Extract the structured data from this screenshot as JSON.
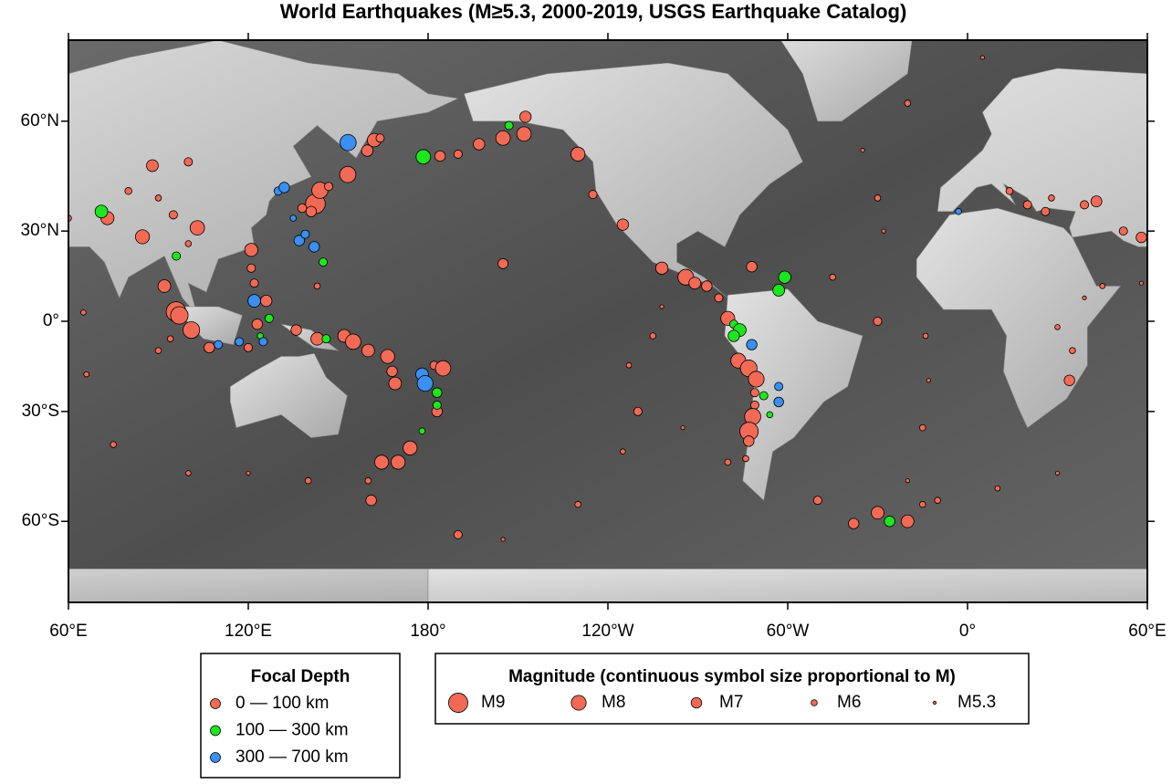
{
  "map": {
    "title": "World Earthquakes (M≥5.3, 2000-2019, USGS Earthquake Catalog)",
    "projection": "miller",
    "xlim": [
      60,
      420
    ],
    "ylim": [
      -76,
      76
    ],
    "xticks": [
      {
        "value": 60,
        "label": "60°E"
      },
      {
        "value": 120,
        "label": "120°E"
      },
      {
        "value": 180,
        "label": "180°"
      },
      {
        "value": 240,
        "label": "120°W"
      },
      {
        "value": 300,
        "label": "60°W"
      },
      {
        "value": 360,
        "label": "0°"
      },
      {
        "value": 420,
        "label": "60°E"
      }
    ],
    "yticks": [
      {
        "value": -60,
        "label": "60°S"
      },
      {
        "value": -30,
        "label": "30°S"
      },
      {
        "value": 0,
        "label": "0°"
      },
      {
        "value": 30,
        "label": "30°N"
      },
      {
        "value": 60,
        "label": "60°N"
      }
    ],
    "depth_legend": {
      "title": "Focal Depth",
      "classes": [
        {
          "label": "0 — 100 km",
          "min": 0,
          "max": 100,
          "color": "#f26a55"
        },
        {
          "label": "100 — 300 km",
          "min": 100,
          "max": 300,
          "color": "#1ee61e"
        },
        {
          "label": "300 — 700 km",
          "min": 300,
          "max": 700,
          "color": "#3a8ff0"
        }
      ]
    },
    "magnitude_legend": {
      "title": "Magnitude (continuous symbol size proportional to M)",
      "entries": [
        {
          "value": 9,
          "label": "M9"
        },
        {
          "value": 8,
          "label": "M8"
        },
        {
          "value": 7,
          "label": "M7"
        },
        {
          "value": 6,
          "label": "M6"
        },
        {
          "value": 5.3,
          "label": "M5.3"
        }
      ]
    },
    "quakes": [
      {
        "lon": 142.4,
        "lat": 38.3,
        "mag": 9.1,
        "depth": 29
      },
      {
        "lon": 143.9,
        "lat": 42.2,
        "mag": 8.3,
        "depth": 27
      },
      {
        "lon": 153.2,
        "lat": 46.6,
        "mag": 8.3,
        "depth": 10
      },
      {
        "lon": 141.0,
        "lat": 36.0,
        "mag": 7.0,
        "depth": 40
      },
      {
        "lon": 146.8,
        "lat": 43.3,
        "mag": 6.5,
        "depth": 60
      },
      {
        "lon": 138.0,
        "lat": 37.0,
        "mag": 6.6,
        "depth": 10
      },
      {
        "lon": 159.7,
        "lat": 52.9,
        "mag": 7.2,
        "depth": 60
      },
      {
        "lon": 162.0,
        "lat": 55.5,
        "mag": 7.7,
        "depth": 10
      },
      {
        "lon": 164.0,
        "lat": 56.0,
        "mag": 6.5,
        "depth": 15
      },
      {
        "lon": -176.0,
        "lat": 51.5,
        "mag": 7.0,
        "depth": 30
      },
      {
        "lon": -170.0,
        "lat": 52.0,
        "mag": 6.5,
        "depth": 20
      },
      {
        "lon": -163.0,
        "lat": 54.5,
        "mag": 7.2,
        "depth": 20
      },
      {
        "lon": -155.0,
        "lat": 56.0,
        "mag": 7.9,
        "depth": 20
      },
      {
        "lon": -148.0,
        "lat": 57.0,
        "mag": 7.9,
        "depth": 25
      },
      {
        "lon": -147.5,
        "lat": 61.0,
        "mag": 7.2,
        "depth": 30
      },
      {
        "lon": -130.0,
        "lat": 52.0,
        "mag": 7.8,
        "depth": 15
      },
      {
        "lon": -125.0,
        "lat": 41.0,
        "mag": 6.5,
        "depth": 20
      },
      {
        "lon": -115.0,
        "lat": 32.0,
        "mag": 7.2,
        "depth": 10
      },
      {
        "lon": -155.0,
        "lat": 19.5,
        "mag": 6.9,
        "depth": 10
      },
      {
        "lon": -102.0,
        "lat": 18.0,
        "mag": 7.4,
        "depth": 20
      },
      {
        "lon": -94.0,
        "lat": 15.0,
        "mag": 8.2,
        "depth": 50
      },
      {
        "lon": -91.0,
        "lat": 13.0,
        "mag": 7.3,
        "depth": 30
      },
      {
        "lon": -87.0,
        "lat": 12.0,
        "mag": 7.0,
        "depth": 60
      },
      {
        "lon": -83.0,
        "lat": 8.0,
        "mag": 6.5,
        "depth": 20
      },
      {
        "lon": -80.0,
        "lat": 1.0,
        "mag": 7.8,
        "depth": 20
      },
      {
        "lon": -72.0,
        "lat": 18.5,
        "mag": 7.0,
        "depth": 13
      },
      {
        "lon": -76.5,
        "lat": -13.4,
        "mag": 8.0,
        "depth": 39
      },
      {
        "lon": -73.0,
        "lat": -16.0,
        "mag": 8.4,
        "depth": 30
      },
      {
        "lon": -70.5,
        "lat": -19.6,
        "mag": 8.2,
        "depth": 25
      },
      {
        "lon": -71.0,
        "lat": -24.0,
        "mag": 6.5,
        "depth": 60
      },
      {
        "lon": -71.0,
        "lat": -28.0,
        "mag": 6.5,
        "depth": 40
      },
      {
        "lon": -71.7,
        "lat": -31.6,
        "mag": 8.3,
        "depth": 22
      },
      {
        "lon": -72.9,
        "lat": -36.1,
        "mag": 8.8,
        "depth": 23
      },
      {
        "lon": -73.0,
        "lat": -39.0,
        "mag": 7.0,
        "depth": 20
      },
      {
        "lon": -74.0,
        "lat": -44.0,
        "mag": 6.0,
        "depth": 10
      },
      {
        "lon": -30.0,
        "lat": -58.0,
        "mag": 7.5,
        "depth": 30
      },
      {
        "lon": -50.0,
        "lat": -55.0,
        "mag": 6.5,
        "depth": 10
      },
      {
        "lon": -15.0,
        "lat": -56.0,
        "mag": 6.0,
        "depth": 10
      },
      {
        "lon": -20.0,
        "lat": -60.0,
        "mag": 7.5,
        "depth": 15
      },
      {
        "lon": -38.0,
        "lat": -60.5,
        "mag": 7.0,
        "depth": 10
      },
      {
        "lon": -30.0,
        "lat": 40.0,
        "mag": 6.0,
        "depth": 10
      },
      {
        "lon": -28.0,
        "lat": 30.0,
        "mag": 5.5,
        "depth": 10
      },
      {
        "lon": -45.0,
        "lat": 15.0,
        "mag": 6.0,
        "depth": 10
      },
      {
        "lon": -30.0,
        "lat": 0.0,
        "mag": 6.5,
        "depth": 10
      },
      {
        "lon": -14.0,
        "lat": -5.0,
        "mag": 5.8,
        "depth": 10
      },
      {
        "lon": -13.0,
        "lat": -20.0,
        "mag": 5.5,
        "depth": 10
      },
      {
        "lon": -15.0,
        "lat": -35.0,
        "mag": 6.0,
        "depth": 10
      },
      {
        "lon": -20.0,
        "lat": -50.0,
        "mag": 5.5,
        "depth": 10
      },
      {
        "lon": -20.0,
        "lat": 64.0,
        "mag": 6.0,
        "depth": 10
      },
      {
        "lon": -35.0,
        "lat": 53.0,
        "mag": 5.5,
        "depth": 10
      },
      {
        "lon": 20.0,
        "lat": 38.0,
        "mag": 6.5,
        "depth": 10
      },
      {
        "lon": 26.0,
        "lat": 36.0,
        "mag": 6.5,
        "depth": 20
      },
      {
        "lon": 28.0,
        "lat": 40.0,
        "mag": 6.0,
        "depth": 10
      },
      {
        "lon": 43.0,
        "lat": 39.0,
        "mag": 7.1,
        "depth": 10
      },
      {
        "lon": 14.0,
        "lat": 42.0,
        "mag": 6.2,
        "depth": 10
      },
      {
        "lon": 39.0,
        "lat": 38.0,
        "mag": 6.5,
        "depth": 10
      },
      {
        "lon": 52.0,
        "lat": 30.0,
        "mag": 6.5,
        "depth": 10
      },
      {
        "lon": 58.0,
        "lat": 28.0,
        "mag": 7.0,
        "depth": 20
      },
      {
        "lon": 60.0,
        "lat": 34.0,
        "mag": 6.0,
        "depth": 10
      },
      {
        "lon": 73.0,
        "lat": 34.0,
        "mag": 7.6,
        "depth": 25
      },
      {
        "lon": 84.7,
        "lat": 28.2,
        "mag": 7.8,
        "depth": 15
      },
      {
        "lon": 103.0,
        "lat": 31.0,
        "mag": 7.9,
        "depth": 19
      },
      {
        "lon": 95.0,
        "lat": 35.0,
        "mag": 6.5,
        "depth": 10
      },
      {
        "lon": 90.0,
        "lat": 40.0,
        "mag": 6.0,
        "depth": 10
      },
      {
        "lon": 100.0,
        "lat": 26.0,
        "mag": 6.0,
        "depth": 10
      },
      {
        "lon": 80.0,
        "lat": 42.0,
        "mag": 6.2,
        "depth": 15
      },
      {
        "lon": 100.0,
        "lat": 50.0,
        "mag": 6.5,
        "depth": 10
      },
      {
        "lon": 88.0,
        "lat": 49.0,
        "mag": 7.3,
        "depth": 10
      },
      {
        "lon": 95.9,
        "lat": 3.3,
        "mag": 9.1,
        "depth": 30
      },
      {
        "lon": 97.0,
        "lat": 2.0,
        "mag": 8.6,
        "depth": 30
      },
      {
        "lon": 101.0,
        "lat": -3.0,
        "mag": 8.4,
        "depth": 30
      },
      {
        "lon": 94.0,
        "lat": -6.0,
        "mag": 6.0,
        "depth": 10
      },
      {
        "lon": 92.0,
        "lat": 12.0,
        "mag": 7.5,
        "depth": 30
      },
      {
        "lon": 107.0,
        "lat": -9.0,
        "mag": 7.0,
        "depth": 40
      },
      {
        "lon": 120.0,
        "lat": -9.0,
        "mag": 6.5,
        "depth": 30
      },
      {
        "lon": 123.0,
        "lat": -1.0,
        "mag": 7.0,
        "depth": 30
      },
      {
        "lon": 126.0,
        "lat": 7.0,
        "mag": 7.2,
        "depth": 40
      },
      {
        "lon": 122.0,
        "lat": 13.0,
        "mag": 6.5,
        "depth": 20
      },
      {
        "lon": 121.0,
        "lat": 18.0,
        "mag": 6.5,
        "depth": 30
      },
      {
        "lon": 121.0,
        "lat": 24.0,
        "mag": 7.6,
        "depth": 30
      },
      {
        "lon": 136.0,
        "lat": -3.0,
        "mag": 7.0,
        "depth": 30
      },
      {
        "lon": 143.0,
        "lat": -6.0,
        "mag": 7.5,
        "depth": 30
      },
      {
        "lon": 152.0,
        "lat": -5.0,
        "mag": 7.5,
        "depth": 40
      },
      {
        "lon": 155.0,
        "lat": -7.0,
        "mag": 8.1,
        "depth": 20
      },
      {
        "lon": 160.0,
        "lat": -10.0,
        "mag": 7.5,
        "depth": 30
      },
      {
        "lon": 166.5,
        "lat": -12.0,
        "mag": 7.8,
        "depth": 30
      },
      {
        "lon": 168.0,
        "lat": -17.0,
        "mag": 7.0,
        "depth": 30
      },
      {
        "lon": 169.0,
        "lat": -21.0,
        "mag": 7.5,
        "depth": 20
      },
      {
        "lon": -178.0,
        "lat": -15.0,
        "mag": 6.5,
        "depth": 20
      },
      {
        "lon": -175.0,
        "lat": -16.0,
        "mag": 8.1,
        "depth": 20
      },
      {
        "lon": -177.0,
        "lat": -30.0,
        "mag": 7.0,
        "depth": 40
      },
      {
        "lon": 174.0,
        "lat": -41.0,
        "mag": 7.8,
        "depth": 20
      },
      {
        "lon": 170.0,
        "lat": -45.0,
        "mag": 7.8,
        "depth": 20
      },
      {
        "lon": 164.5,
        "lat": -45.0,
        "mag": 7.8,
        "depth": 20
      },
      {
        "lon": 160.0,
        "lat": -50.0,
        "mag": 6.0,
        "depth": 10
      },
      {
        "lon": 161.0,
        "lat": -55.0,
        "mag": 7.0,
        "depth": 10
      },
      {
        "lon": 143.0,
        "lat": 12.0,
        "mag": 6.0,
        "depth": 60
      },
      {
        "lon": -170.0,
        "lat": -63.0,
        "mag": 6.5,
        "depth": 10
      },
      {
        "lon": -155.0,
        "lat": -64.0,
        "mag": 5.5,
        "depth": 10
      },
      {
        "lon": -130.0,
        "lat": -56.0,
        "mag": 6.0,
        "depth": 10
      },
      {
        "lon": -115.0,
        "lat": -42.0,
        "mag": 5.8,
        "depth": 10
      },
      {
        "lon": -110.0,
        "lat": -30.0,
        "mag": 6.5,
        "depth": 10
      },
      {
        "lon": -113.0,
        "lat": -15.0,
        "mag": 5.8,
        "depth": 10
      },
      {
        "lon": -105.0,
        "lat": -5.0,
        "mag": 6.0,
        "depth": 10
      },
      {
        "lon": -102.0,
        "lat": 5.0,
        "mag": 5.5,
        "depth": 10
      },
      {
        "lon": -95.0,
        "lat": -35.0,
        "mag": 5.5,
        "depth": 10
      },
      {
        "lon": -80.0,
        "lat": -45.0,
        "mag": 6.0,
        "depth": 10
      },
      {
        "lon": 30.0,
        "lat": -48.0,
        "mag": 5.5,
        "depth": 10
      },
      {
        "lon": 66.0,
        "lat": -18.0,
        "mag": 5.8,
        "depth": 10
      },
      {
        "lon": 65.0,
        "lat": 3.0,
        "mag": 5.8,
        "depth": 10
      },
      {
        "lon": 58.0,
        "lat": 13.0,
        "mag": 5.5,
        "depth": 10
      },
      {
        "lon": 45.0,
        "lat": 12.0,
        "mag": 5.8,
        "depth": 10
      },
      {
        "lon": 75.0,
        "lat": -40.0,
        "mag": 6.0,
        "depth": 10
      },
      {
        "lon": 100.0,
        "lat": -48.0,
        "mag": 5.8,
        "depth": 10
      },
      {
        "lon": 120.0,
        "lat": -48.0,
        "mag": 5.5,
        "depth": 10
      },
      {
        "lon": 140.0,
        "lat": -50.0,
        "mag": 6.0,
        "depth": 10
      },
      {
        "lon": 10.0,
        "lat": -52.0,
        "mag": 5.8,
        "depth": 10
      },
      {
        "lon": -10.0,
        "lat": -55.0,
        "mag": 6.0,
        "depth": 10
      },
      {
        "lon": 30.0,
        "lat": -2.0,
        "mag": 5.8,
        "depth": 10
      },
      {
        "lon": 35.0,
        "lat": -10.0,
        "mag": 6.0,
        "depth": 10
      },
      {
        "lon": 34.0,
        "lat": -20.0,
        "mag": 7.0,
        "depth": 10
      },
      {
        "lon": 39.0,
        "lat": 8.0,
        "mag": 5.5,
        "depth": 10
      },
      {
        "lon": 90.0,
        "lat": -10.0,
        "mag": 6.0,
        "depth": 10
      },
      {
        "lon": 5.0,
        "lat": 73.0,
        "mag": 5.5,
        "depth": 10
      },
      {
        "lon": 178.4,
        "lat": 51.3,
        "mag": 7.9,
        "depth": 107
      },
      {
        "lon": -153.0,
        "lat": 59.0,
        "mag": 6.5,
        "depth": 120
      },
      {
        "lon": -61.0,
        "lat": 15.0,
        "mag": 7.4,
        "depth": 150
      },
      {
        "lon": -63.0,
        "lat": 10.6,
        "mag": 7.3,
        "depth": 123
      },
      {
        "lon": -78.0,
        "lat": -1.0,
        "mag": 6.5,
        "depth": 150
      },
      {
        "lon": -76.0,
        "lat": -3.0,
        "mag": 7.5,
        "depth": 120
      },
      {
        "lon": -78.0,
        "lat": -5.0,
        "mag": 7.2,
        "depth": 100
      },
      {
        "lon": -66.0,
        "lat": -31.0,
        "mag": 6.0,
        "depth": 120
      },
      {
        "lon": -68.0,
        "lat": -25.0,
        "mag": 6.5,
        "depth": 200
      },
      {
        "lon": -26.0,
        "lat": -60.0,
        "mag": 7.0,
        "depth": 100
      },
      {
        "lon": 71.0,
        "lat": 36.0,
        "mag": 7.5,
        "depth": 200
      },
      {
        "lon": 96.0,
        "lat": 22.0,
        "mag": 6.5,
        "depth": 110
      },
      {
        "lon": 127.0,
        "lat": 1.0,
        "mag": 6.5,
        "depth": 200
      },
      {
        "lon": 124.0,
        "lat": -5.0,
        "mag": 6.0,
        "depth": 150
      },
      {
        "lon": 146.0,
        "lat": -6.0,
        "mag": 6.5,
        "depth": 100
      },
      {
        "lon": -177.0,
        "lat": -24.0,
        "mag": 6.8,
        "depth": 100
      },
      {
        "lon": -177.0,
        "lat": -28.0,
        "mag": 6.5,
        "depth": 250
      },
      {
        "lon": 178.0,
        "lat": -36.0,
        "mag": 6.0,
        "depth": 200
      },
      {
        "lon": 145.0,
        "lat": 20.0,
        "mag": 6.5,
        "depth": 150
      },
      {
        "lon": 135.0,
        "lat": 34.0,
        "mag": 6.0,
        "depth": 350
      },
      {
        "lon": 130.0,
        "lat": 42.0,
        "mag": 6.5,
        "depth": 560
      },
      {
        "lon": 132.0,
        "lat": 43.0,
        "mag": 7.0,
        "depth": 580
      },
      {
        "lon": 153.3,
        "lat": 54.9,
        "mag": 8.3,
        "depth": 600
      },
      {
        "lon": 137.0,
        "lat": 27.0,
        "mag": 7.0,
        "depth": 400
      },
      {
        "lon": 139.0,
        "lat": 29.0,
        "mag": 6.5,
        "depth": 450
      },
      {
        "lon": 142.0,
        "lat": 25.0,
        "mag": 7.0,
        "depth": 500
      },
      {
        "lon": -72.0,
        "lat": -8.0,
        "mag": 7.0,
        "depth": 600
      },
      {
        "lon": -63.0,
        "lat": -22.0,
        "mag": 6.5,
        "depth": 550
      },
      {
        "lon": -63.0,
        "lat": -27.0,
        "mag": 6.8,
        "depth": 580
      },
      {
        "lon": -3.0,
        "lat": 36.0,
        "mag": 6.0,
        "depth": 600
      },
      {
        "lon": 110.0,
        "lat": -8.0,
        "mag": 6.5,
        "depth": 600
      },
      {
        "lon": 117.0,
        "lat": -7.0,
        "mag": 6.5,
        "depth": 550
      },
      {
        "lon": 125.0,
        "lat": -7.0,
        "mag": 6.5,
        "depth": 550
      },
      {
        "lon": 122.0,
        "lat": 7.0,
        "mag": 7.5,
        "depth": 600
      },
      {
        "lon": 178.0,
        "lat": -18.0,
        "mag": 7.5,
        "depth": 600
      },
      {
        "lon": 179.0,
        "lat": -21.0,
        "mag": 8.2,
        "depth": 600
      }
    ]
  }
}
